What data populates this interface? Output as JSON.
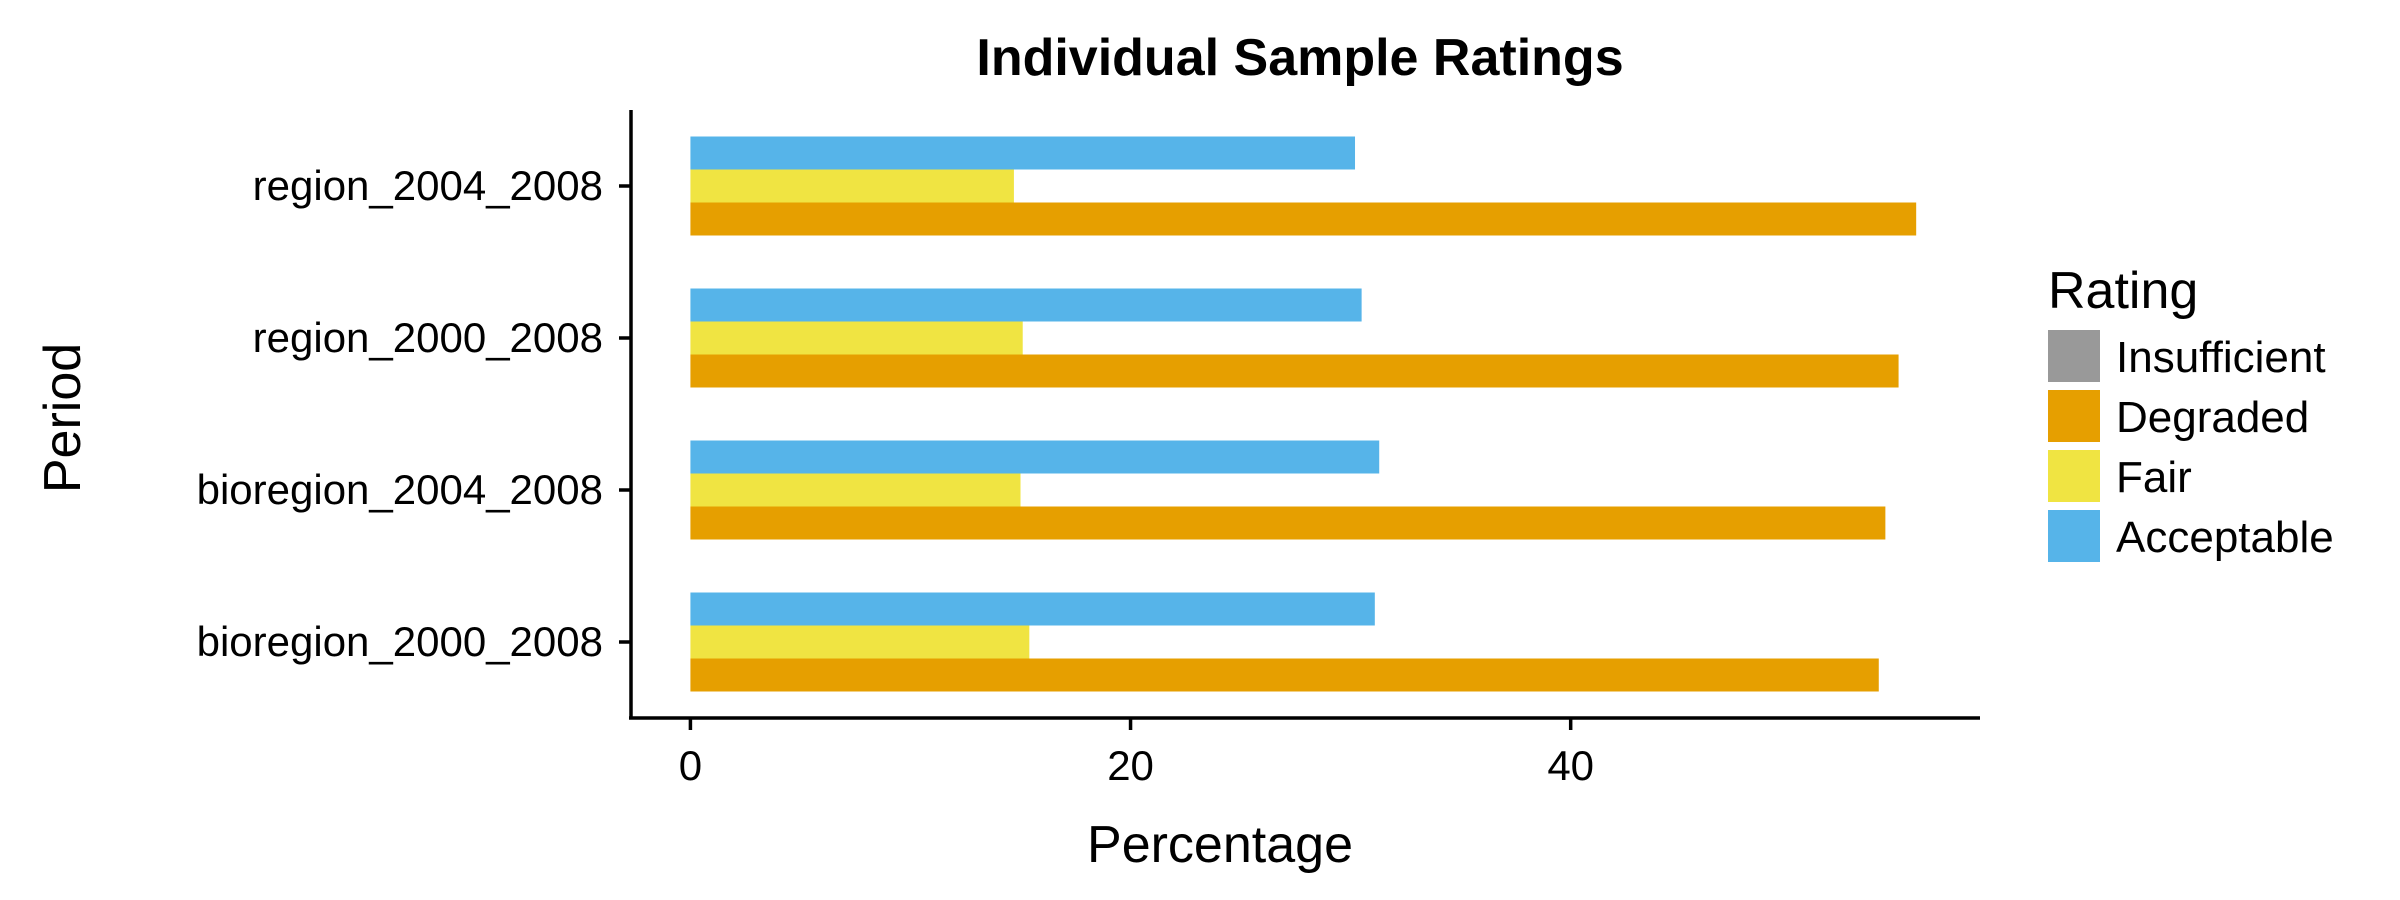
{
  "chart_data": {
    "type": "bar",
    "orientation": "horizontal",
    "title": "Individual Sample Ratings",
    "xlabel": "Percentage",
    "ylabel": "Period",
    "categories": [
      "region_2004_2008",
      "region_2000_2008",
      "bioregion_2004_2008",
      "bioregion_2000_2008"
    ],
    "x_ticks": [
      "0",
      "20",
      "40"
    ],
    "xlim": [
      -2.7,
      58.6
    ],
    "grid": false,
    "legend": {
      "title": "Rating",
      "position": "right",
      "entries": [
        {
          "name": "Insufficient",
          "color": "#999999"
        },
        {
          "name": "Degraded",
          "color": "#E69F00"
        },
        {
          "name": "Fair",
          "color": "#F0E442"
        },
        {
          "name": "Acceptable",
          "color": "#56B4E9"
        }
      ]
    },
    "series": [
      {
        "name": "Acceptable",
        "color": "#56B4E9",
        "values": [
          30.2,
          30.5,
          31.3,
          31.1
        ]
      },
      {
        "name": "Fair",
        "color": "#F0E442",
        "values": [
          14.7,
          15.1,
          15.0,
          15.4
        ]
      },
      {
        "name": "Degraded",
        "color": "#E69F00",
        "values": [
          55.7,
          54.9,
          54.3,
          54.0
        ]
      }
    ]
  }
}
